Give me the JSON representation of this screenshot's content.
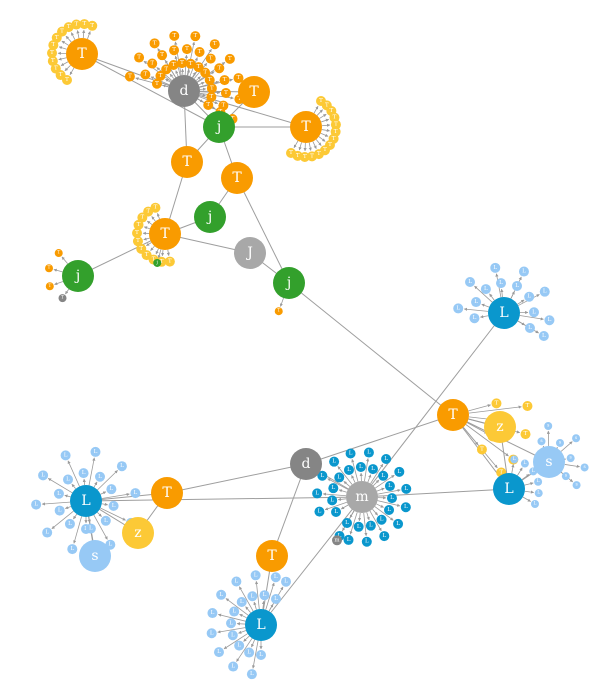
{
  "colors": {
    "orange": "#f99b00",
    "yellow": "#fcc936",
    "green": "#33a02c",
    "darkgray": "#858585",
    "lightgray": "#a8a8a8",
    "blue": "#0a97cd",
    "lightblue": "#97c9f5",
    "edge": "#9e9e9e"
  },
  "nodes": [
    {
      "id": "T1",
      "label": "T",
      "color": "orange"
    },
    {
      "id": "d1",
      "label": "d",
      "color": "darkgray"
    },
    {
      "id": "T2",
      "label": "T",
      "color": "orange"
    },
    {
      "id": "j1",
      "label": "j",
      "color": "green"
    },
    {
      "id": "T3",
      "label": "T",
      "color": "orange"
    },
    {
      "id": "T4",
      "label": "T",
      "color": "orange"
    },
    {
      "id": "T5",
      "label": "T",
      "color": "orange"
    },
    {
      "id": "j2",
      "label": "j",
      "color": "green"
    },
    {
      "id": "T6",
      "label": "T",
      "color": "orange"
    },
    {
      "id": "J1",
      "label": "J",
      "color": "lightgray"
    },
    {
      "id": "j3",
      "label": "j",
      "color": "green"
    },
    {
      "id": "j4",
      "label": "j",
      "color": "green"
    },
    {
      "id": "L1",
      "label": "L",
      "color": "blue"
    },
    {
      "id": "T7",
      "label": "T",
      "color": "orange"
    },
    {
      "id": "z1",
      "label": "z",
      "color": "yellow"
    },
    {
      "id": "s1",
      "label": "s",
      "color": "lightblue"
    },
    {
      "id": "L2",
      "label": "L",
      "color": "blue"
    },
    {
      "id": "d2",
      "label": "d",
      "color": "darkgray"
    },
    {
      "id": "m1",
      "label": "m",
      "color": "lightgray"
    },
    {
      "id": "L3",
      "label": "L",
      "color": "blue"
    },
    {
      "id": "T8",
      "label": "T",
      "color": "orange"
    },
    {
      "id": "z2",
      "label": "z",
      "color": "yellow"
    },
    {
      "id": "s2",
      "label": "s",
      "color": "lightblue"
    },
    {
      "id": "T9",
      "label": "T",
      "color": "orange"
    },
    {
      "id": "L4",
      "label": "L",
      "color": "blue"
    }
  ],
  "edges": [
    [
      "T1",
      "d1"
    ],
    [
      "T1",
      "j1"
    ],
    [
      "d1",
      "j1"
    ],
    [
      "d1",
      "T2"
    ],
    [
      "d1",
      "T3"
    ],
    [
      "d1",
      "T4"
    ],
    [
      "j1",
      "T2"
    ],
    [
      "j1",
      "T3"
    ],
    [
      "j1",
      "T4"
    ],
    [
      "j1",
      "T5"
    ],
    [
      "T4",
      "T6"
    ],
    [
      "T5",
      "j2"
    ],
    [
      "T5",
      "j3"
    ],
    [
      "j2",
      "T6"
    ],
    [
      "T6",
      "J1"
    ],
    [
      "J1",
      "j3"
    ],
    [
      "T6",
      "j4"
    ],
    [
      "j3",
      "T7"
    ],
    [
      "T7",
      "d2"
    ],
    [
      "T7",
      "z1"
    ],
    [
      "T7",
      "s1"
    ],
    [
      "T7",
      "L2"
    ],
    [
      "L1",
      "m1"
    ],
    [
      "z1",
      "L2"
    ],
    [
      "s1",
      "L2"
    ],
    [
      "L2",
      "m1"
    ],
    [
      "d2",
      "T8"
    ],
    [
      "d2",
      "m1"
    ],
    [
      "d2",
      "T9"
    ],
    [
      "T8",
      "L3"
    ],
    [
      "T8",
      "z2"
    ],
    [
      "L3",
      "m1"
    ],
    [
      "L3",
      "z2"
    ],
    [
      "L3",
      "s2"
    ],
    [
      "T9",
      "L4"
    ],
    [
      "m1",
      "L4"
    ]
  ],
  "leaf_groups": [
    {
      "parent": "T1",
      "label": "T",
      "color": "yellow",
      "count": 12
    },
    {
      "parent": "d1",
      "label": "T",
      "color": "orange",
      "count": 34
    },
    {
      "parent": "T3",
      "label": "T",
      "color": "yellow",
      "count": 14
    },
    {
      "parent": "T6",
      "label": "T",
      "color": "yellow",
      "count": 11
    },
    {
      "parent": "T6",
      "label": "j",
      "color": "green",
      "count": 1
    },
    {
      "parent": "j4",
      "label": "T",
      "color": "orange",
      "count": 3
    },
    {
      "parent": "j4",
      "label": "T",
      "color": "darkgray",
      "count": 1
    },
    {
      "parent": "j3",
      "label": "T",
      "color": "orange",
      "count": 1
    },
    {
      "parent": "L1",
      "label": "L",
      "color": "lightblue",
      "count": 15
    },
    {
      "parent": "T7",
      "label": "T",
      "color": "yellow",
      "count": 8
    },
    {
      "parent": "s1",
      "label": "s",
      "color": "lightblue",
      "count": 8
    },
    {
      "parent": "L2",
      "label": "L",
      "color": "lightblue",
      "count": 6
    },
    {
      "parent": "m1",
      "label": "L",
      "color": "blue",
      "count": 30
    },
    {
      "parent": "m1",
      "label": "m",
      "color": "darkgray",
      "count": 1
    },
    {
      "parent": "L3",
      "label": "L",
      "color": "lightblue",
      "count": 22
    },
    {
      "parent": "L4",
      "label": "L",
      "color": "lightblue",
      "count": 20
    }
  ]
}
